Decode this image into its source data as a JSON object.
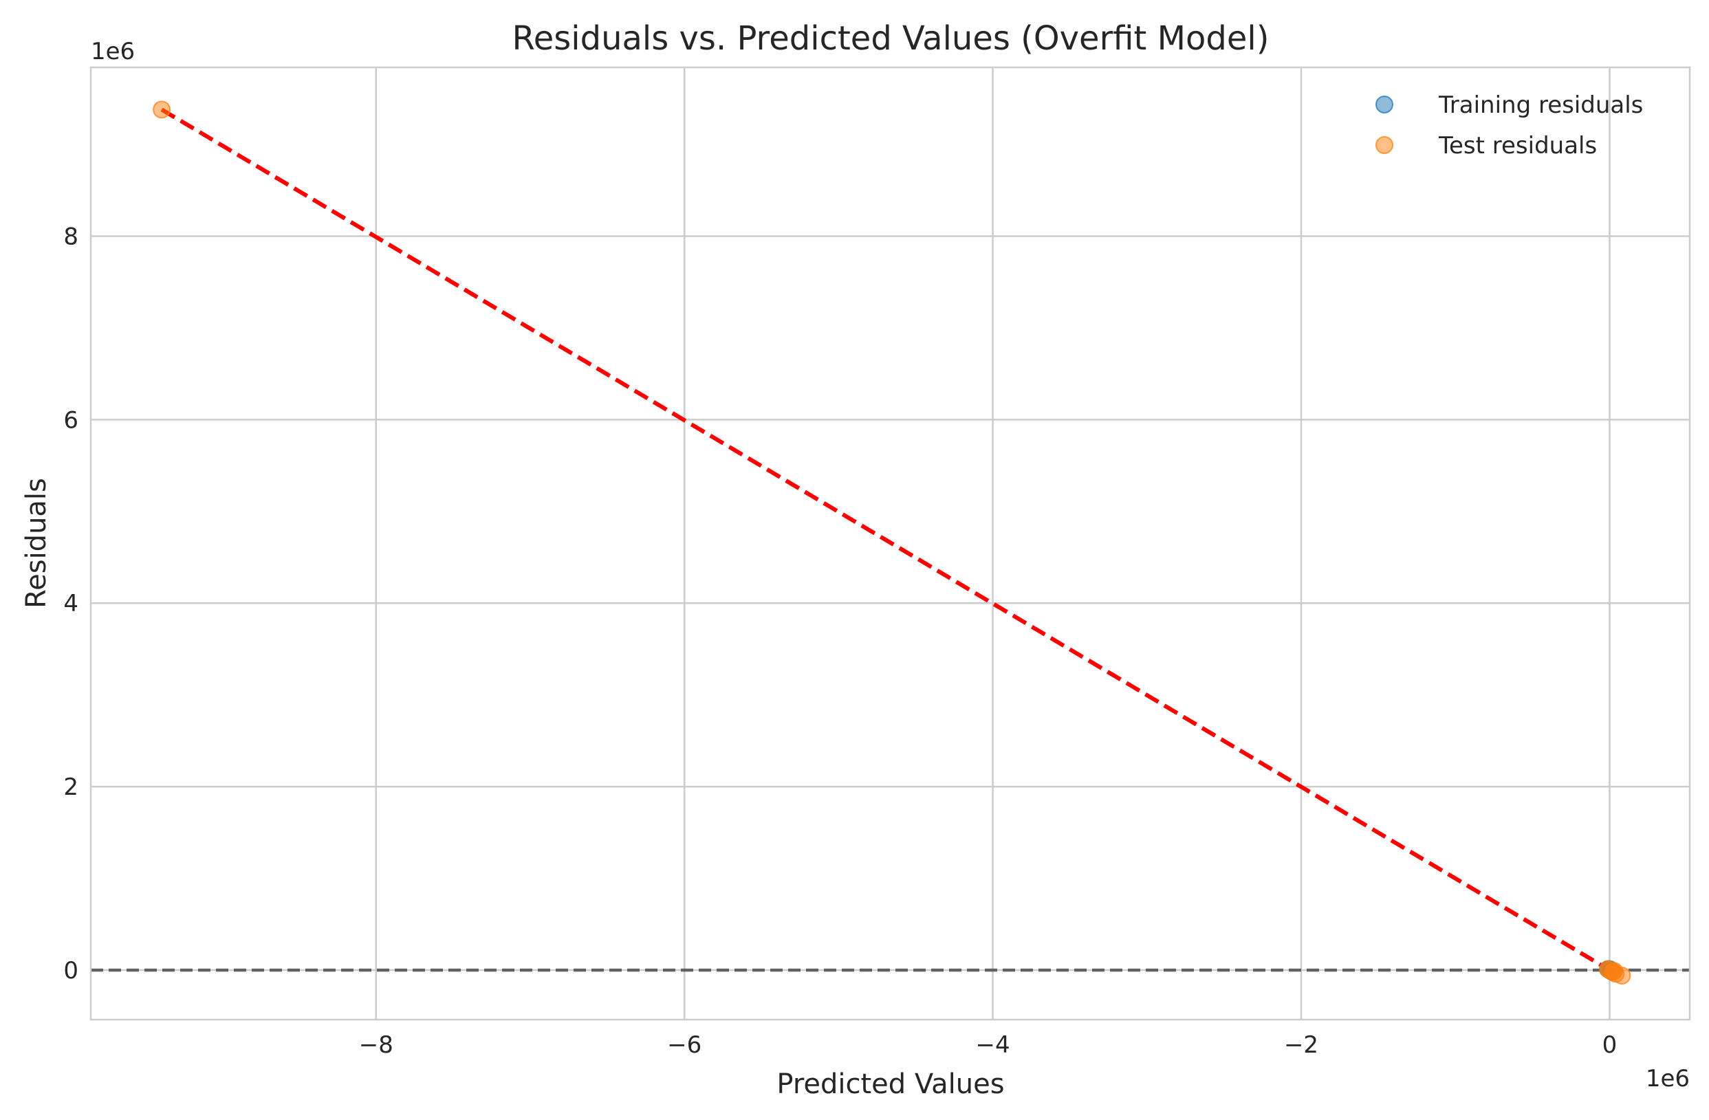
{
  "chart_data": {
    "type": "scatter",
    "title": "Residuals vs. Predicted Values (Overfit Model)",
    "xlabel": "Predicted Values",
    "ylabel": "Residuals",
    "x_offset_label": "1e6",
    "y_offset_label": "1e6",
    "x_scale": 1000000,
    "y_scale": 1000000,
    "xlim": [
      -9.85,
      0.52
    ],
    "ylim": [
      -0.54,
      9.84
    ],
    "x_ticks": [
      -8,
      -6,
      -4,
      -2,
      0
    ],
    "x_tick_labels": [
      "−8",
      "−6",
      "−4",
      "−2",
      "0"
    ],
    "y_ticks": [
      0,
      2,
      4,
      6,
      8
    ],
    "y_tick_labels": [
      "0",
      "2",
      "4",
      "6",
      "8"
    ],
    "grid": true,
    "legend_position": "top-right",
    "series": [
      {
        "name": "Training residuals",
        "color": "#1f77b4",
        "alpha": 0.5,
        "points": [
          [
            0.0,
            0.0
          ],
          [
            0.01,
            -0.01
          ],
          [
            -0.01,
            0.01
          ],
          [
            0.02,
            -0.02
          ],
          [
            0.0,
            0.01
          ]
        ]
      },
      {
        "name": "Test residuals",
        "color": "#ff7f0e",
        "alpha": 0.5,
        "points": [
          [
            -9.39,
            9.38
          ],
          [
            0.0,
            0.0
          ],
          [
            0.02,
            -0.02
          ],
          [
            0.04,
            -0.04
          ],
          [
            0.08,
            -0.06
          ],
          [
            -0.01,
            0.01
          ],
          [
            0.03,
            -0.01
          ]
        ]
      }
    ],
    "reference_lines": [
      {
        "kind": "perfect-fit-line",
        "color": "#ff0000",
        "style": "dashed",
        "from": [
          -9.39,
          9.38
        ],
        "to": [
          0.0,
          0.0
        ]
      },
      {
        "kind": "zero-line",
        "color": "#555555",
        "style": "dashed",
        "y": 0
      }
    ]
  }
}
